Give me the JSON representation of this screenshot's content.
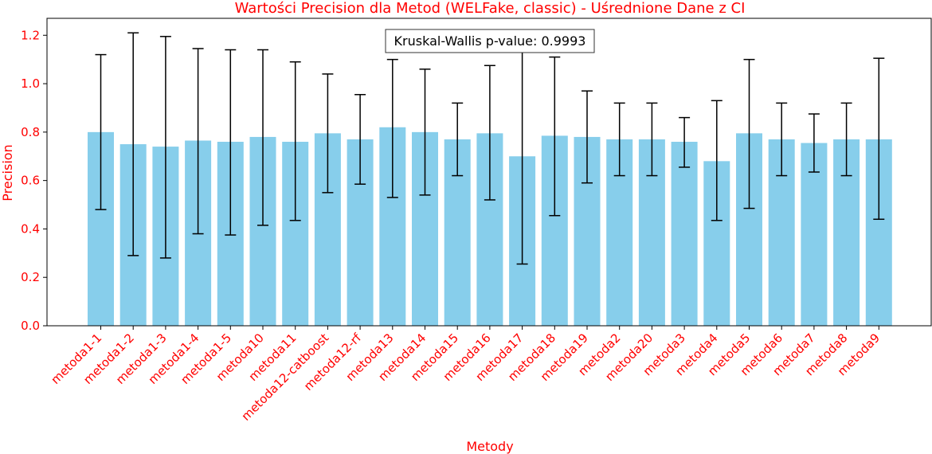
{
  "colors": {
    "bar": "#87ceeb",
    "text_accent": "#ff0000",
    "error": "#000000"
  },
  "chart_data": {
    "type": "bar",
    "title": "Wartości Precision dla Metod (WELFake, classic) - Uśrednione Dane z CI",
    "xlabel": "Metody",
    "ylabel": "Precision",
    "ylim": [
      0,
      1.27
    ],
    "yticks": [
      "0.0",
      "0.2",
      "0.4",
      "0.6",
      "0.8",
      "1.0",
      "1.2"
    ],
    "annotation": "Kruskal-Wallis p-value: 0.9993",
    "categories": [
      "metoda1-1",
      "metoda1-2",
      "metoda1-3",
      "metoda1-4",
      "metoda1-5",
      "metoda10",
      "metoda11",
      "metoda12-catboost",
      "metoda12-rf",
      "metoda13",
      "metoda14",
      "metoda15",
      "metoda16",
      "metoda17",
      "metoda18",
      "metoda19",
      "metoda2",
      "metoda20",
      "metoda3",
      "metoda4",
      "metoda5",
      "metoda6",
      "metoda7",
      "metoda8",
      "metoda9"
    ],
    "values": [
      0.8,
      0.75,
      0.74,
      0.765,
      0.76,
      0.78,
      0.76,
      0.795,
      0.77,
      0.82,
      0.8,
      0.77,
      0.795,
      0.7,
      0.785,
      0.78,
      0.77,
      0.77,
      0.76,
      0.68,
      0.795,
      0.77,
      0.755,
      0.77,
      0.77
    ],
    "ci_low": [
      0.48,
      0.29,
      0.28,
      0.38,
      0.375,
      0.415,
      0.435,
      0.55,
      0.585,
      0.53,
      0.54,
      0.62,
      0.52,
      0.255,
      0.455,
      0.59,
      0.62,
      0.62,
      0.655,
      0.435,
      0.485,
      0.62,
      0.635,
      0.62,
      0.44
    ],
    "ci_high": [
      1.12,
      1.21,
      1.195,
      1.145,
      1.14,
      1.14,
      1.09,
      1.04,
      0.955,
      1.1,
      1.06,
      0.92,
      1.075,
      1.15,
      1.11,
      0.97,
      0.92,
      0.92,
      0.86,
      0.93,
      1.1,
      0.92,
      0.875,
      0.92,
      1.105
    ],
    "grid": false,
    "legend": "none"
  }
}
